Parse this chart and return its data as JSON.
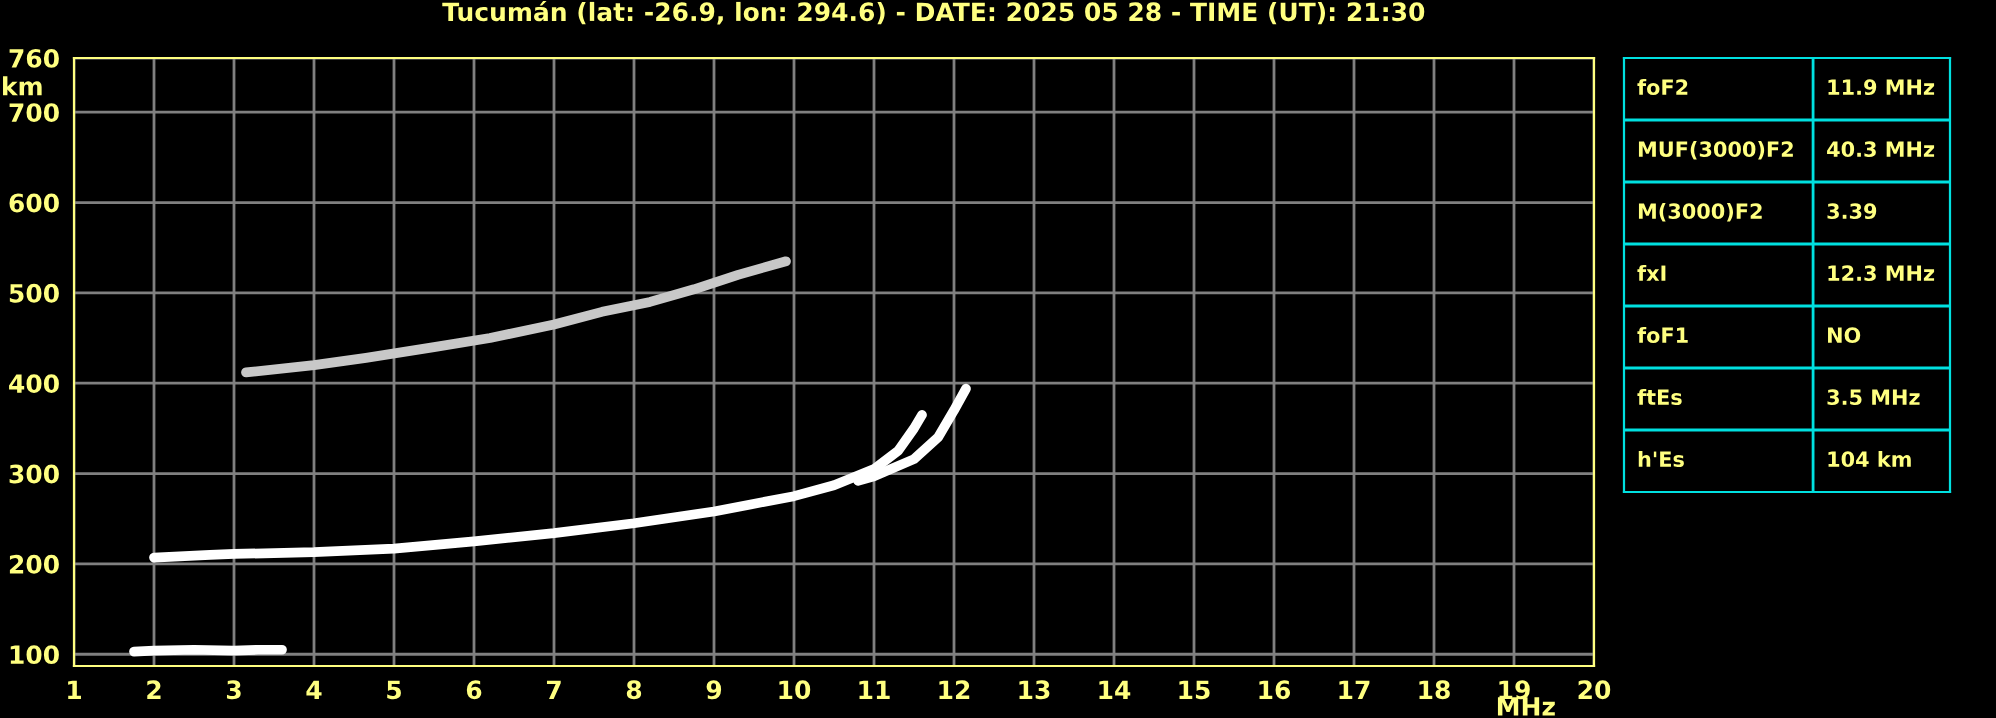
{
  "chart_data": [
    {
      "type": "line",
      "title": "Tucumán (lat: -26.9, lon: 294.6) - DATE: 2025 05 28 - TIME (UT): 21:30",
      "xlabel": "MHz",
      "ylabel": "km",
      "xlim": [
        1,
        20
      ],
      "xticks": [
        1,
        2,
        3,
        4,
        5,
        6,
        7,
        8,
        9,
        10,
        11,
        12,
        13,
        14,
        15,
        16,
        17,
        18,
        19,
        20
      ],
      "ylim": [
        87,
        760
      ],
      "yticks": [
        100,
        200,
        300,
        400,
        500,
        600,
        700,
        760
      ],
      "grid": true,
      "line_style": "solid",
      "marker": "none",
      "series": [
        {
          "color": "#ffffff",
          "x": [
            1.75,
            2.0,
            2.5,
            3.0,
            3.3,
            3.6
          ],
          "values": [
            103,
            104,
            105,
            104,
            105,
            105
          ]
        },
        {
          "color": "#ffffff",
          "x": [
            2.0,
            2.7,
            3.0,
            4.0,
            5.0,
            6.0,
            7.0,
            8.0,
            9.0,
            10.0,
            10.5,
            11.0,
            11.3,
            11.5,
            11.6
          ],
          "values": [
            207,
            210,
            211,
            213,
            217,
            225,
            234,
            245,
            258,
            275,
            287,
            305,
            325,
            350,
            365
          ]
        },
        {
          "color": "#ffffff",
          "x": [
            10.8,
            11.0,
            11.5,
            11.8,
            12.0,
            12.15
          ],
          "values": [
            292,
            297,
            316,
            340,
            370,
            394
          ]
        },
        {
          "color": "#c8c8c8",
          "x": [
            3.15,
            4.0,
            4.65,
            5.5,
            6.2,
            7.0,
            7.6,
            8.2,
            8.75,
            9.3,
            9.9
          ],
          "values": [
            412,
            420,
            428,
            440,
            450,
            465,
            479,
            490,
            504,
            520,
            535
          ]
        }
      ]
    },
    {
      "type": "other",
      "categories": [
        "foF2",
        "MUF(3000)F2",
        "M(3000)F2",
        "fxI",
        "foF1",
        "ftEs",
        "h'Es"
      ],
      "value_labels": [
        "11.9 MHz",
        "40.3 MHz",
        "3.39",
        "12.3 MHz",
        "NO",
        "3.5 MHz",
        "104 km"
      ]
    }
  ]
}
